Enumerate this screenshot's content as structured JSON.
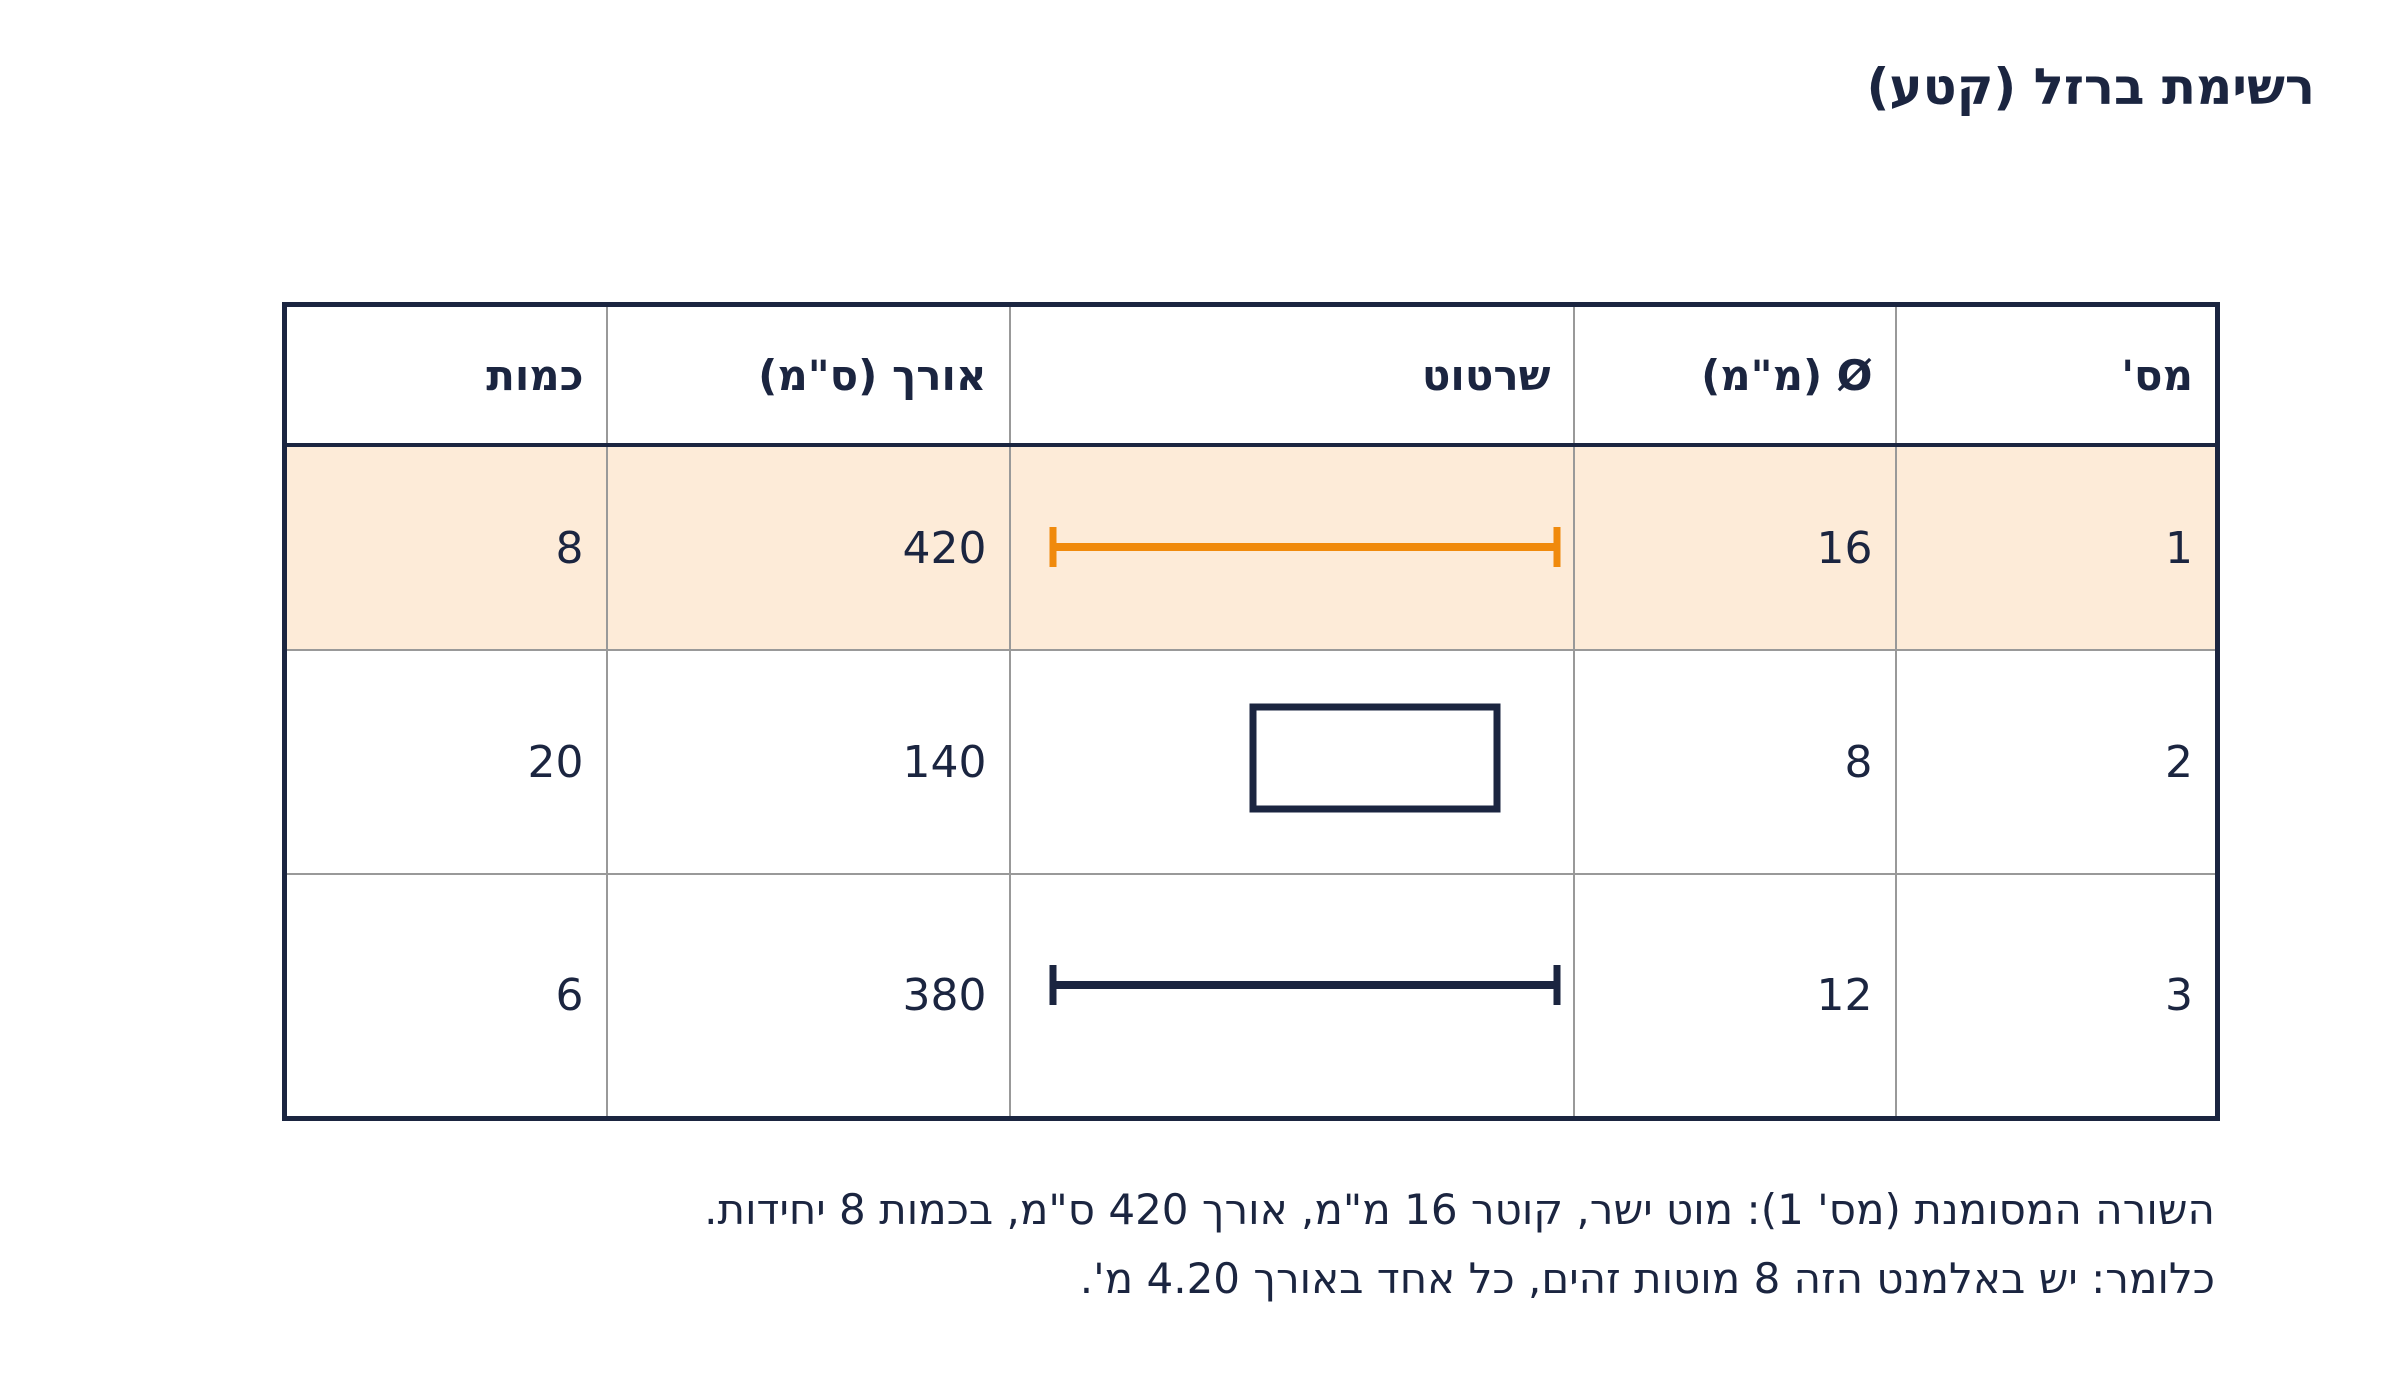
{
  "header": {
    "title": "רשימת ברזל (קטע)"
  },
  "table": {
    "columns": [
      "מס'",
      "Ø (מ\"מ)",
      "שרטוט",
      "אורך (ס\"מ)",
      "כמות"
    ],
    "rows": [
      [
        1,
        16,
        null,
        420,
        8
      ],
      [
        2,
        8,
        null,
        140,
        20
      ],
      [
        3,
        12,
        null,
        380,
        6
      ]
    ]
  },
  "notes": [
    "השורה המסומנת (מס' 1): מוט ישר, קוטר 16 מ\"מ, אורך 420 ס\"מ, בכמות 8 יחידות.",
    "כלומר: יש באלמנט הזה 8 מוטות זהים, כל אחד באורך 4.20 מ'."
  ]
}
